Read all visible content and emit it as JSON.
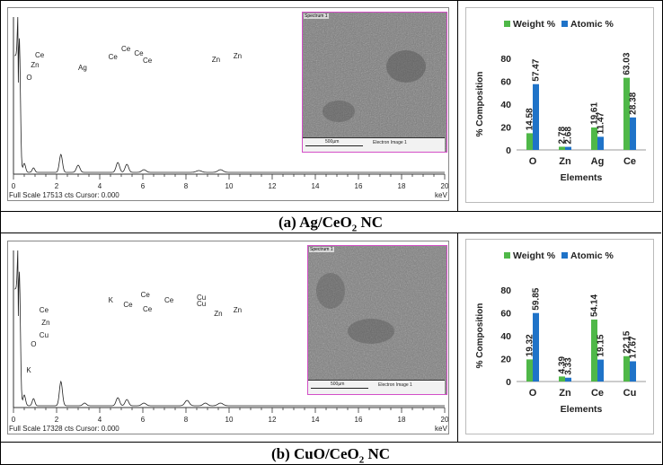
{
  "panels": [
    {
      "caption_main": "(a) Ag/CeO",
      "caption_sub": "2",
      "caption_tail": " NC",
      "spectrum": {
        "footer": "Full Scale 17513 cts Cursor: 0.000",
        "unit": "keV",
        "x_ticks": [
          "0",
          "2",
          "4",
          "6",
          "8",
          "10",
          "12",
          "14",
          "16",
          "18",
          "20"
        ],
        "peak_labels": [
          "O",
          "Zn",
          "Ce",
          "Ag",
          "Ce",
          "Ce",
          "Ce",
          "Ce",
          "Zn",
          "Zn"
        ],
        "image": {
          "tag": "Spectrum 1",
          "scale": "500µm",
          "caption": "Electron Image 1"
        }
      },
      "chart_data": {
        "type": "bar",
        "categories": [
          "O",
          "Zn",
          "Ag",
          "Ce"
        ],
        "series": [
          {
            "name": "Weight %",
            "values": [
              14.58,
              2.78,
              19.61,
              63.03
            ],
            "labels": [
              "14.58",
              "2.78",
              "19.61",
              "63.03"
            ],
            "color": "#4fb848"
          },
          {
            "name": "Atomic %",
            "values": [
              57.47,
              2.68,
              11.47,
              28.38
            ],
            "labels": [
              "57.47",
              "2.68",
              "11.47",
              "28.38"
            ],
            "color": "#1f73c8"
          }
        ],
        "xlabel": "Elements",
        "ylabel": "% Composition",
        "ylim": [
          0,
          80
        ],
        "yticks": [
          "0",
          "20",
          "40",
          "60",
          "80"
        ],
        "legend": "top",
        "grid": false
      }
    },
    {
      "caption_main": "(b) CuO/CeO",
      "caption_sub": "2",
      "caption_tail": " NC",
      "spectrum": {
        "footer": "Full Scale 17328 cts Cursor: 0.000",
        "unit": "keV",
        "x_ticks": [
          "0",
          "2",
          "4",
          "6",
          "8",
          "10",
          "12",
          "14",
          "16",
          "18",
          "20"
        ],
        "peak_labels": [
          "K",
          "O",
          "Cu",
          "Zn",
          "Ce",
          "K",
          "Ce",
          "Ce",
          "Ce",
          "Ce",
          "Cu",
          "Cu",
          "Zn",
          "Zn"
        ],
        "image": {
          "tag": "Spectrum 1",
          "scale": "500µm",
          "caption": "Electron Image 1"
        }
      },
      "chart_data": {
        "type": "bar",
        "categories": [
          "O",
          "Zn",
          "Ce",
          "Cu"
        ],
        "series": [
          {
            "name": "Weight %",
            "values": [
              19.32,
              4.39,
              54.14,
              22.15
            ],
            "labels": [
              "19.32",
              "4.39",
              "54.14",
              "22.15"
            ],
            "color": "#4fb848"
          },
          {
            "name": "Atomic %",
            "values": [
              59.85,
              3.33,
              19.15,
              17.67
            ],
            "labels": [
              "59.85",
              "3.33",
              "19.15",
              "17.67"
            ],
            "color": "#1f73c8"
          }
        ],
        "xlabel": "Elements",
        "ylabel": "% Composition",
        "ylim": [
          0,
          80
        ],
        "yticks": [
          "0",
          "20",
          "40",
          "60",
          "80"
        ],
        "legend": "top",
        "grid": false
      }
    }
  ]
}
